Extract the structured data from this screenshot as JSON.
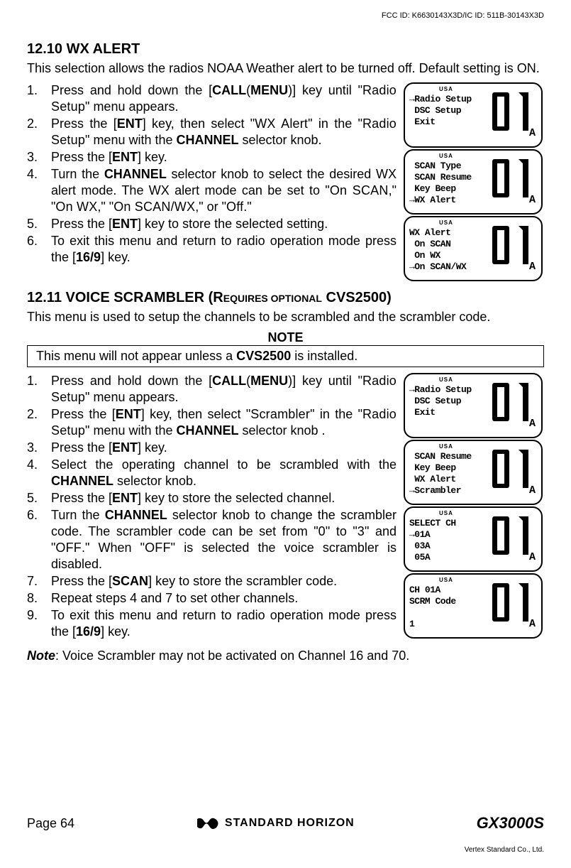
{
  "header": {
    "fcc_id": "FCC ID: K6630143X3D/IC ID: 511B-30143X3D"
  },
  "section_1210": {
    "heading": "12.10  WX ALERT",
    "intro": "This selection allows the radios NOAA Weather alert to be turned off. Default setting is ON.",
    "steps": {
      "s1_a": "Press and hold down the [",
      "s1_b": "CALL",
      "s1_c": "(",
      "s1_d": "MENU",
      "s1_e": ")] key until \"",
      "s1_f": "Radio Setup",
      "s1_g": "\" menu appears.",
      "s2_a": "Press the [",
      "s2_b": "ENT",
      "s2_c": "] key, then select \"",
      "s2_d": "WX Alert",
      "s2_e": "\" in the \"",
      "s2_f": "Radio Setup",
      "s2_g": "\" menu with the ",
      "s2_h": "CHANNEL",
      "s2_i": " selector knob.",
      "s3_a": "Press the [",
      "s3_b": "ENT",
      "s3_c": "] key.",
      "s4_a": "Turn the ",
      "s4_b": "CHANNEL",
      "s4_c": " selector knob to select the desired WX alert mode. The WX alert mode can be set to \"",
      "s4_d": "On SCAN",
      "s4_e": ",\" \"",
      "s4_f": "On WX",
      "s4_g": ",\" \"",
      "s4_h": "On SCAN/WX",
      "s4_i": ",\" or \"",
      "s4_j": "Off",
      "s4_k": ".\"",
      "s5_a": "Press the [",
      "s5_b": "ENT",
      "s5_c": "] key to store the selected setting.",
      "s6_a": "To exit this menu and return to radio operation mode press the [",
      "s6_b": "16/9",
      "s6_c": "] key."
    }
  },
  "section_1211": {
    "heading_main": "12.11  VOICE SCRAMBLER ",
    "heading_sub1": "(R",
    "heading_sub2": "EQUIRES OPTIONAL",
    "heading_sub3": " CVS2500",
    "heading_sub4": ")",
    "intro": "This menu is used to setup the channels to be scrambled and the scrambler code.",
    "note_label": "NOTE",
    "note_a": "This menu will not appear unless a ",
    "note_b": "CVS2500",
    "note_c": " is installed.",
    "steps": {
      "s1_a": "Press and hold down the [",
      "s1_b": "CALL",
      "s1_c": "(",
      "s1_d": "MENU",
      "s1_e": ")] key until \"",
      "s1_f": "Radio Setup",
      "s1_g": "\" menu appears.",
      "s2_a": "Press the [",
      "s2_b": "ENT",
      "s2_c": "] key, then select \"",
      "s2_d": "Scrambler",
      "s2_e": "\" in the \"",
      "s2_f": "Radio Setup",
      "s2_g": "\" menu with the ",
      "s2_h": "CHANNEL",
      "s2_i": " selector knob .",
      "s3_a": "Press the [",
      "s3_b": "ENT",
      "s3_c": "] key.",
      "s4_a": "Select the operating channel to be scrambled with the ",
      "s4_b": "CHANNEL",
      "s4_c": " selector knob.",
      "s5_a": "Press the [",
      "s5_b": "ENT",
      "s5_c": "] key to store the selected channel.",
      "s6_a": "Turn the ",
      "s6_b": "CHANNEL",
      "s6_c": " selector knob to change the scrambler code. The scrambler code can be set from \"",
      "s6_d": "0",
      "s6_e": "\" to \"",
      "s6_f": "3",
      "s6_g": "\" and \"",
      "s6_h": "OFF",
      "s6_i": ".\" When \"",
      "s6_j": "OFF",
      "s6_k": "\" is selected the voice scrambler is disabled.",
      "s7_a": "Press the [",
      "s7_b": "SCAN",
      "s7_c": "] key to store the scrambler code.",
      "s8": "Repeat steps 4 and 7 to set other channels.",
      "s9_a": "To exit this menu and return to radio operation mode press the [",
      "s9_b": "16/9",
      "s9_c": "] key."
    },
    "bottom_note_label": "Note",
    "bottom_note_text": ": Voice Scrambler may not be activated on Channel 16 and 70."
  },
  "lcd": {
    "usa": "USA",
    "channel": "01",
    "suffix": "A",
    "screens_1210": [
      "→Radio Setup\n DSC Setup\n Exit",
      " SCAN Type\n SCAN Resume\n Key Beep\n→WX Alert",
      "WX Alert\n On SCAN\n On WX\n→On SCAN/WX"
    ],
    "screens_1211": [
      "→Radio Setup\n DSC Setup\n Exit",
      " SCAN Resume\n Key Beep\n WX Alert\n→Scrambler",
      "SELECT CH\n→01A\n 03A\n 05A",
      "CH 01A\nSCRM Code\n\n1"
    ]
  },
  "footer": {
    "page": "Page 64",
    "brand": "STANDARD HORIZON",
    "model": "GX3000S",
    "vertex": "Vertex Standard Co., Ltd."
  }
}
